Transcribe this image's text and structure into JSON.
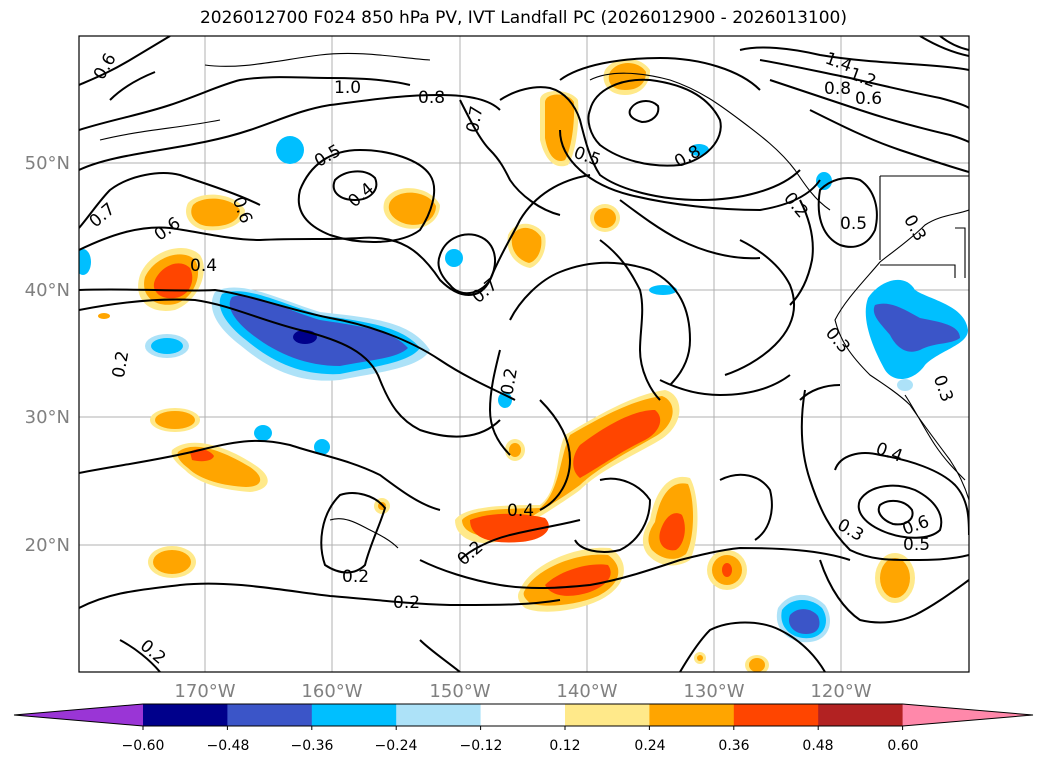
{
  "title": "2026012700 F024 850 hPa PV, IVT Landfall PC (2026012900 - 2026013100)",
  "lon_ticks": [
    "170°W",
    "160°W",
    "150°W",
    "140°W",
    "130°W",
    "120°W"
  ],
  "lat_ticks": [
    "50°N",
    "40°N",
    "30°N",
    "20°N"
  ],
  "colorbar": {
    "colors": [
      "#9a35d6",
      "#00008b",
      "#3b55c8",
      "#00bfff",
      "#ade2f8",
      "#ffffff",
      "#ffe98a",
      "#ffa500",
      "#ff4500",
      "#b22222",
      "#ff88aa"
    ],
    "tick_labels": [
      "−0.60",
      "−0.48",
      "−0.36",
      "−0.24",
      "−0.12",
      "0.12",
      "0.24",
      "0.36",
      "0.48",
      "0.60"
    ]
  },
  "contour_labels": [
    "0.6",
    "1.0",
    "0.8",
    "0.7",
    "0.5",
    "0.4",
    "0.6",
    "0.7",
    "0.6",
    "0.4",
    "0.2",
    "0.2",
    "0.7",
    "0.5",
    "0.8",
    "1.4",
    "1.2",
    "0.8",
    "0.6",
    "0.5",
    "0.3",
    "0.3",
    "0.3",
    "0.4",
    "0.3",
    "0.6",
    "0.5",
    "0.2",
    "0.4",
    "0.2",
    "0.2",
    "0.2",
    "0.2"
  ]
}
